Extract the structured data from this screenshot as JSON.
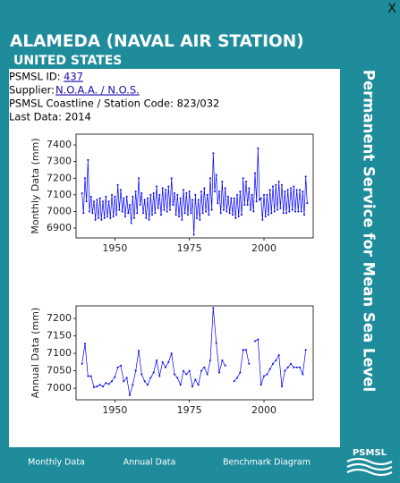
{
  "header": {
    "title": "ALAMEDA (NAVAL AIR STATION)",
    "subtitle": "UNITED STATES",
    "close": "X"
  },
  "sidebar": {
    "text": "Permanent Service for Mean Sea Level"
  },
  "info": {
    "id_label": "PSMSL ID:",
    "id": "437",
    "supplier_label": "Supplier:",
    "supplier": "N.O.A.A. / N.O.S.",
    "coastline": "PSMSL Coastline / Station Code: 823/032",
    "last_data": "Last Data: 2014"
  },
  "chart_data": [
    {
      "type": "line",
      "ylabel": "Monthly Data (mm)",
      "color": "#0000ff",
      "xlim": [
        1937,
        2016.5
      ],
      "ylim": [
        6841,
        7465
      ],
      "xticks": [
        1950,
        1975,
        2000
      ],
      "yticks": [
        6900,
        7000,
        7100,
        7200,
        7300,
        7400
      ],
      "x": [
        1939,
        1939.5,
        1940,
        1940.5,
        1941,
        1941.5,
        1942,
        1942.5,
        1943,
        1943.5,
        1944,
        1944.5,
        1945,
        1945.5,
        1946,
        1946.5,
        1947,
        1947.5,
        1948,
        1948.5,
        1949,
        1949.5,
        1950,
        1950.5,
        1951,
        1951.5,
        1952,
        1952.5,
        1953,
        1953.5,
        1954,
        1954.5,
        1955,
        1955.5,
        1956,
        1956.5,
        1957,
        1957.5,
        1958,
        1958.5,
        1959,
        1959.5,
        1960,
        1960.5,
        1961,
        1961.5,
        1962,
        1962.5,
        1963,
        1963.5,
        1964,
        1964.5,
        1965,
        1965.5,
        1966,
        1966.5,
        1967,
        1967.5,
        1968,
        1968.5,
        1969,
        1969.5,
        1970,
        1970.5,
        1971,
        1971.5,
        1972,
        1972.5,
        1973,
        1973.5,
        1974,
        1974.5,
        1975,
        1975.5,
        1976,
        1976.5,
        1977,
        1977.5,
        1978,
        1978.5,
        1979,
        1979.5,
        1980,
        1980.5,
        1981,
        1981.5,
        1982,
        1982.5,
        1983,
        1983.5,
        1984,
        1984.5,
        1985,
        1985.5,
        1986,
        1986.5,
        1987,
        1987.5,
        1988,
        1988.5,
        1989,
        1989.5,
        1990,
        1990.5,
        1991,
        1991.5,
        1992,
        1992.5,
        1993,
        1993.5,
        1994,
        1994.5,
        1995,
        1995.5,
        1996,
        1996.5,
        1997,
        1997.5,
        1998,
        1998.5,
        1999,
        1999.5,
        2000,
        2000.5,
        2001,
        2001.5,
        2002,
        2002.5,
        2003,
        2003.5,
        2004,
        2004.5,
        2005,
        2005.5,
        2006,
        2006.5,
        2007,
        2007.5,
        2008,
        2008.5,
        2009,
        2009.5,
        2010,
        2010.5,
        2011,
        2011.5,
        2012,
        2012.5,
        2013,
        2013.5,
        2014,
        2014.5
      ],
      "values": [
        7110,
        6990,
        7200,
        7060,
        7310,
        7000,
        7090,
        6990,
        7060,
        6950,
        7070,
        6960,
        7080,
        6950,
        7060,
        6960,
        7090,
        6970,
        7060,
        6960,
        7100,
        6970,
        7090,
        6980,
        7160,
        7010,
        7130,
        7000,
        7080,
        6970,
        7090,
        6990,
        7040,
        6930,
        7090,
        6960,
        7120,
        6990,
        7200,
        7040,
        7110,
        6990,
        7070,
        6960,
        7080,
        6950,
        7100,
        6980,
        7110,
        6990,
        7150,
        7020,
        7100,
        6980,
        7140,
        7010,
        7130,
        7000,
        7150,
        7010,
        7200,
        7040,
        7110,
        6980,
        7100,
        6970,
        7080,
        6950,
        7130,
        6990,
        7110,
        6980,
        7120,
        6990,
        7070,
        6860,
        7100,
        6960,
        7070,
        6950,
        7120,
        6990,
        7140,
        7000,
        7100,
        6980,
        7200,
        7010,
        7350,
        7120,
        7220,
        7050,
        7120,
        6990,
        7180,
        7010,
        7140,
        7000,
        7090,
        6990,
        7080,
        6980,
        7080,
        6960,
        7100,
        6970,
        7120,
        6980,
        7200,
        7040,
        7180,
        7040,
        7140,
        7010,
        7100,
        7000,
        7230,
        7060,
        7380,
        7070,
        7080,
        6950,
        7100,
        6970,
        7100,
        6980,
        7130,
        6990,
        7150,
        7000,
        7160,
        7010,
        7180,
        7020,
        7160,
        6990,
        7120,
        6990,
        7130,
        7000,
        7140,
        7010,
        7150,
        7000,
        7130,
        7000,
        7130,
        7000,
        7120,
        6980,
        7210,
        7050
      ]
    },
    {
      "type": "line",
      "ylabel": "Annual Data (mm)",
      "color": "#0000ff",
      "xlim": [
        1937,
        2016.5
      ],
      "ylim": [
        6967,
        7236
      ],
      "xticks": [
        1950,
        1975,
        2000
      ],
      "yticks": [
        7000,
        7050,
        7100,
        7150,
        7200
      ],
      "x": [
        1939,
        1940,
        1941,
        1942,
        1943,
        1944,
        1945,
        1946,
        1947,
        1948,
        1949,
        1950,
        1951,
        1952,
        1953,
        1954,
        1955,
        1956,
        1957,
        1958,
        1959,
        1960,
        1961,
        1962,
        1963,
        1964,
        1965,
        1966,
        1967,
        1968,
        1969,
        1970,
        1971,
        1972,
        1973,
        1974,
        1975,
        1976,
        1977,
        1978,
        1979,
        1980,
        1981,
        1982,
        1983,
        1984,
        1985,
        1986,
        1987,
        1988,
        1989,
        1990,
        1991,
        1992,
        1993,
        1994,
        1995,
        1996,
        1997,
        1998,
        1999,
        2000,
        2001,
        2002,
        2003,
        2004,
        2005,
        2006,
        2007,
        2008,
        2009,
        2010,
        2011,
        2012,
        2013,
        2014
      ],
      "values": [
        7070,
        7128,
        7035,
        7035,
        7003,
        7005,
        7010,
        7005,
        7015,
        7012,
        7020,
        7032,
        7060,
        7065,
        7020,
        7030,
        6980,
        7010,
        7050,
        7108,
        7040,
        7020,
        7010,
        7030,
        7045,
        7080,
        7035,
        7075,
        7060,
        7075,
        7100,
        7040,
        7030,
        7010,
        7050,
        7040,
        7050,
        7005,
        7025,
        7010,
        7050,
        7060,
        7040,
        7080,
        7230,
        7130,
        7045,
        7080,
        7065,
        null,
        null,
        7020,
        7030,
        7045,
        7110,
        7110,
        7070,
        null,
        7135,
        7140,
        7010,
        7035,
        7040,
        7055,
        7070,
        7080,
        7095,
        7005,
        7050,
        7060,
        7070,
        7060,
        7060,
        7060,
        7040,
        7110
      ]
    }
  ],
  "footer": {
    "links": [
      "Monthly Data",
      "Annual Data",
      "Benchmark Diagram"
    ],
    "logo": "PSMSL"
  }
}
